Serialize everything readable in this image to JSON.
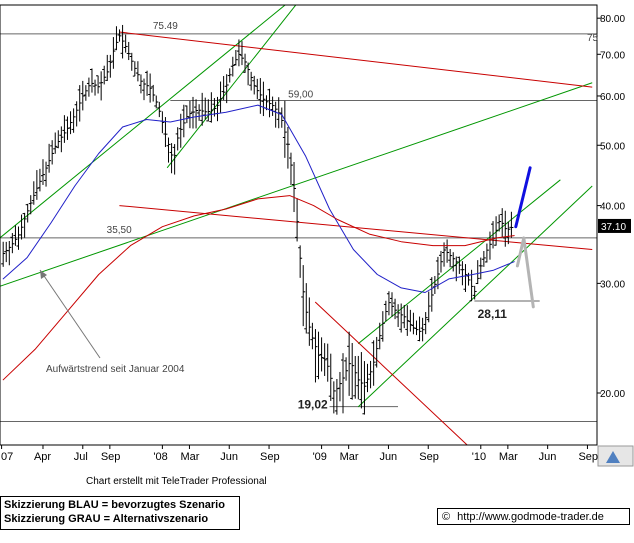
{
  "footer": {
    "credit": "Chart erstellt mit TeleTrader Professional",
    "note_blue": "Skizzierung BLAU = bevorzugtes Szenario",
    "note_gray": "Skizzierung GRAU = Alternativszenario",
    "copyright_symbol": "©",
    "url": "http://www.godmode-trader.de"
  },
  "chart_data": {
    "type": "bar",
    "title": "",
    "xlabel": "",
    "ylabel": "",
    "y_scale": "log",
    "ylim": [
      16.5,
      84
    ],
    "grid": false,
    "x_axis_ticks": [
      "07",
      "Apr",
      "Jul",
      "Sep",
      "'08",
      "Mar",
      "Jun",
      "Sep",
      "'09",
      "Mar",
      "Jun",
      "Sep",
      "'10",
      "Mar",
      "Jun",
      "Sep"
    ],
    "y_axis_ticks": [
      80.0,
      70.0,
      60.0,
      50.0,
      40.0,
      30.0,
      20.0
    ],
    "y_axis_labels": [
      "80.00",
      "70.00",
      "60.00",
      "50.00",
      "40.00",
      "30.00",
      "20.00"
    ],
    "current_price": 37.1,
    "current_price_label": "37.10",
    "edge_label": "75",
    "levels": [
      {
        "value": 75.49,
        "label": "75.49"
      },
      {
        "value": 59.0,
        "label": "59,00"
      },
      {
        "value": 35.5,
        "label": "35,50"
      },
      {
        "value": 28.11,
        "label": "28,11"
      },
      {
        "value": 19.02,
        "label": "19,02"
      },
      {
        "value": 18.0,
        "label": ""
      }
    ],
    "annotations": [
      {
        "text": "Aufwärtstrend seit Januar 2004"
      }
    ],
    "series": [
      {
        "name": "",
        "kind": "ohlc",
        "color": "#000000",
        "close_path": [
          [
            2007.0,
            33.5
          ],
          [
            2007.05,
            34.5
          ],
          [
            2007.1,
            36.0
          ],
          [
            2007.15,
            39.0
          ],
          [
            2007.2,
            42.0
          ],
          [
            2007.27,
            46.0
          ],
          [
            2007.33,
            50.0
          ],
          [
            2007.4,
            53.0
          ],
          [
            2007.45,
            56.0
          ],
          [
            2007.5,
            60.0
          ],
          [
            2007.55,
            63.0
          ],
          [
            2007.6,
            62.0
          ],
          [
            2007.66,
            66.0
          ],
          [
            2007.7,
            72.0
          ],
          [
            2007.73,
            75.0
          ],
          [
            2007.77,
            72.0
          ],
          [
            2007.82,
            67.0
          ],
          [
            2007.87,
            63.0
          ],
          [
            2007.92,
            62.0
          ],
          [
            2007.97,
            58.0
          ],
          [
            2008.02,
            52.0
          ],
          [
            2008.07,
            47.0
          ],
          [
            2008.1,
            52.0
          ],
          [
            2008.16,
            56.0
          ],
          [
            2008.22,
            57.0
          ],
          [
            2008.28,
            56.5
          ],
          [
            2008.34,
            57.5
          ],
          [
            2008.4,
            62.0
          ],
          [
            2008.44,
            67.0
          ],
          [
            2008.48,
            70.0
          ],
          [
            2008.52,
            68.0
          ],
          [
            2008.58,
            62.0
          ],
          [
            2008.64,
            59.0
          ],
          [
            2008.69,
            58.0
          ],
          [
            2008.74,
            56.0
          ],
          [
            2008.79,
            50.0
          ],
          [
            2008.83,
            42.0
          ],
          [
            2008.86,
            34.0
          ],
          [
            2008.89,
            28.0
          ],
          [
            2008.93,
            25.0
          ],
          [
            2008.98,
            23.0
          ],
          [
            2009.03,
            22.5
          ],
          [
            2009.08,
            20.0
          ],
          [
            2009.13,
            21.0
          ],
          [
            2009.18,
            22.5
          ],
          [
            2009.23,
            21.0
          ],
          [
            2009.27,
            20.5
          ],
          [
            2009.32,
            22.0
          ],
          [
            2009.37,
            25.0
          ],
          [
            2009.42,
            28.0
          ],
          [
            2009.47,
            27.0
          ],
          [
            2009.52,
            26.5
          ],
          [
            2009.57,
            25.5
          ],
          [
            2009.63,
            25.0
          ],
          [
            2009.68,
            28.0
          ],
          [
            2009.73,
            31.0
          ],
          [
            2009.77,
            34.0
          ],
          [
            2009.82,
            33.0
          ],
          [
            2009.87,
            32.0
          ],
          [
            2009.92,
            30.5
          ],
          [
            2009.96,
            29.0
          ],
          [
            2010.0,
            32.0
          ],
          [
            2010.04,
            34.0
          ],
          [
            2010.08,
            35.5
          ],
          [
            2010.12,
            38.0
          ],
          [
            2010.16,
            36.5
          ],
          [
            2010.21,
            37.1
          ]
        ]
      },
      {
        "name": "",
        "kind": "moving_average",
        "color": "#2020c8",
        "points": [
          [
            2007.0,
            30.5
          ],
          [
            2007.15,
            33.0
          ],
          [
            2007.3,
            37.5
          ],
          [
            2007.45,
            43.0
          ],
          [
            2007.6,
            48.5
          ],
          [
            2007.75,
            53.5
          ],
          [
            2007.9,
            55.0
          ],
          [
            2008.05,
            54.5
          ],
          [
            2008.2,
            55.5
          ],
          [
            2008.4,
            56.5
          ],
          [
            2008.6,
            58.0
          ],
          [
            2008.75,
            56.0
          ],
          [
            2008.9,
            48.0
          ],
          [
            2009.05,
            39.5
          ],
          [
            2009.2,
            34.0
          ],
          [
            2009.35,
            31.0
          ],
          [
            2009.5,
            29.5
          ],
          [
            2009.65,
            29.0
          ],
          [
            2009.8,
            30.5
          ],
          [
            2009.95,
            31.0
          ],
          [
            2010.08,
            31.5
          ],
          [
            2010.21,
            32.5
          ]
        ]
      },
      {
        "name": "",
        "kind": "moving_average",
        "color": "#c80000",
        "points": [
          [
            2007.0,
            21.0
          ],
          [
            2007.2,
            23.5
          ],
          [
            2007.4,
            27.0
          ],
          [
            2007.6,
            31.0
          ],
          [
            2007.8,
            34.5
          ],
          [
            2008.0,
            37.0
          ],
          [
            2008.2,
            38.5
          ],
          [
            2008.4,
            39.5
          ],
          [
            2008.6,
            41.0
          ],
          [
            2008.8,
            41.5
          ],
          [
            2008.95,
            40.0
          ],
          [
            2009.1,
            38.0
          ],
          [
            2009.3,
            36.0
          ],
          [
            2009.5,
            35.0
          ],
          [
            2009.7,
            34.5
          ],
          [
            2009.9,
            34.5
          ],
          [
            2010.1,
            35.5
          ],
          [
            2010.21,
            35.8
          ]
        ]
      },
      {
        "name": "",
        "kind": "scenario",
        "color": "#1010e0",
        "points": [
          [
            2010.22,
            37.0
          ],
          [
            2010.31,
            46.0
          ]
        ]
      },
      {
        "name": "",
        "kind": "scenario",
        "color": "#b4b4b4",
        "points": [
          [
            2010.23,
            32.0
          ],
          [
            2010.27,
            35.5
          ],
          [
            2010.33,
            27.5
          ]
        ]
      }
    ],
    "trendlines": [
      {
        "color": "#009600",
        "points": [
          [
            2006.95,
            35.0
          ],
          [
            2008.96,
            92.0
          ]
        ]
      },
      {
        "color": "#009600",
        "points": [
          [
            2006.95,
            29.5
          ],
          [
            2010.7,
            63.0
          ]
        ]
      },
      {
        "color": "#009600",
        "points": [
          [
            2008.03,
            46.0
          ],
          [
            2008.96,
            92.0
          ]
        ]
      },
      {
        "color": "#009600",
        "points": [
          [
            2009.23,
            19.0
          ],
          [
            2010.7,
            43.0
          ]
        ]
      },
      {
        "color": "#009600",
        "points": [
          [
            2009.23,
            24.0
          ],
          [
            2010.5,
            44.0
          ]
        ]
      },
      {
        "color": "#c80000",
        "points": [
          [
            2007.73,
            76.0
          ],
          [
            2010.7,
            62.0
          ]
        ]
      },
      {
        "color": "#c80000",
        "points": [
          [
            2007.73,
            40.0
          ],
          [
            2010.7,
            34.0
          ]
        ]
      },
      {
        "color": "#c80000",
        "points": [
          [
            2008.96,
            28.0
          ],
          [
            2009.97,
            16.0
          ]
        ]
      }
    ]
  }
}
